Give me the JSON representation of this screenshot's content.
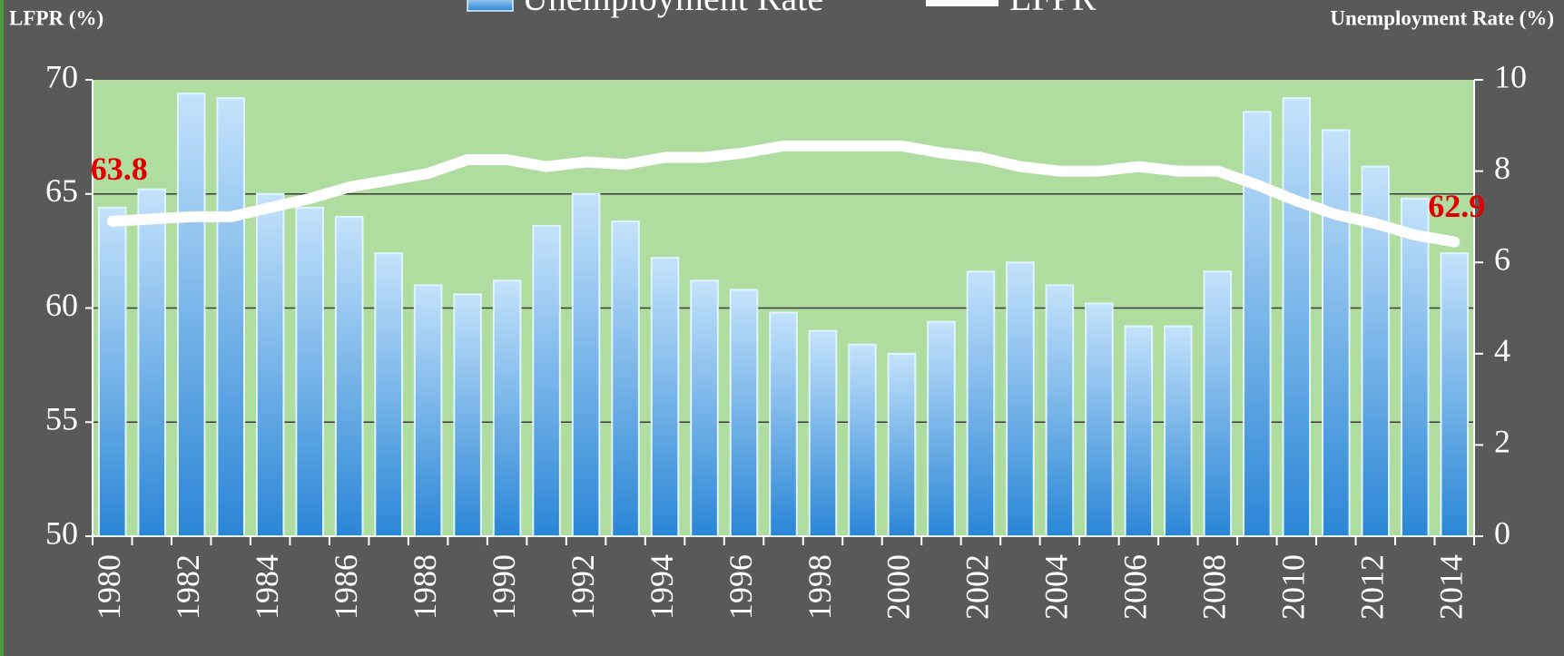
{
  "chart_data": {
    "type": "bar_line",
    "y_axis_label": "LFPR (%)",
    "y2_axis_label": "Unemployment Rate (%)",
    "categories": [
      "1980",
      null,
      "1982",
      null,
      "1984",
      null,
      "1986",
      null,
      "1988",
      null,
      "1990",
      null,
      "1992",
      null,
      "1994",
      null,
      "1996",
      null,
      "1998",
      null,
      "2000",
      null,
      "2002",
      null,
      "2004",
      null,
      "2006",
      null,
      "2008",
      null,
      "2010",
      null,
      "2012",
      null,
      "2014"
    ],
    "series": [
      {
        "name": "Unemployment Rate",
        "type": "bar",
        "axis": "y2",
        "color": "#3a95de",
        "values": [
          7.2,
          7.6,
          9.7,
          9.6,
          7.5,
          7.2,
          7.0,
          6.2,
          5.5,
          5.3,
          5.6,
          6.8,
          7.5,
          6.9,
          6.1,
          5.6,
          5.4,
          4.9,
          4.5,
          4.2,
          4.0,
          4.7,
          5.8,
          6.0,
          5.5,
          5.1,
          4.6,
          4.6,
          5.8,
          9.3,
          9.6,
          8.9,
          8.1,
          7.4,
          6.2
        ]
      },
      {
        "name": "LFPR",
        "type": "line",
        "axis": "y",
        "color": "#ffffff",
        "values": [
          63.8,
          63.9,
          64.0,
          64.0,
          64.4,
          64.8,
          65.3,
          65.6,
          65.9,
          66.5,
          66.5,
          66.2,
          66.4,
          66.3,
          66.6,
          66.6,
          66.8,
          67.1,
          67.1,
          67.1,
          67.1,
          66.8,
          66.6,
          66.2,
          66.0,
          66.0,
          66.2,
          66.0,
          66.0,
          65.4,
          64.7,
          64.1,
          63.7,
          63.2,
          62.9
        ]
      }
    ],
    "label_line_ends": true,
    "ylim": [
      50,
      70
    ],
    "yticks": [
      50,
      55,
      60,
      65,
      70
    ],
    "y2lim": [
      0,
      10
    ],
    "y2ticks": [
      0,
      2,
      4,
      6,
      8,
      10
    ],
    "grid": true,
    "legend": "top"
  }
}
